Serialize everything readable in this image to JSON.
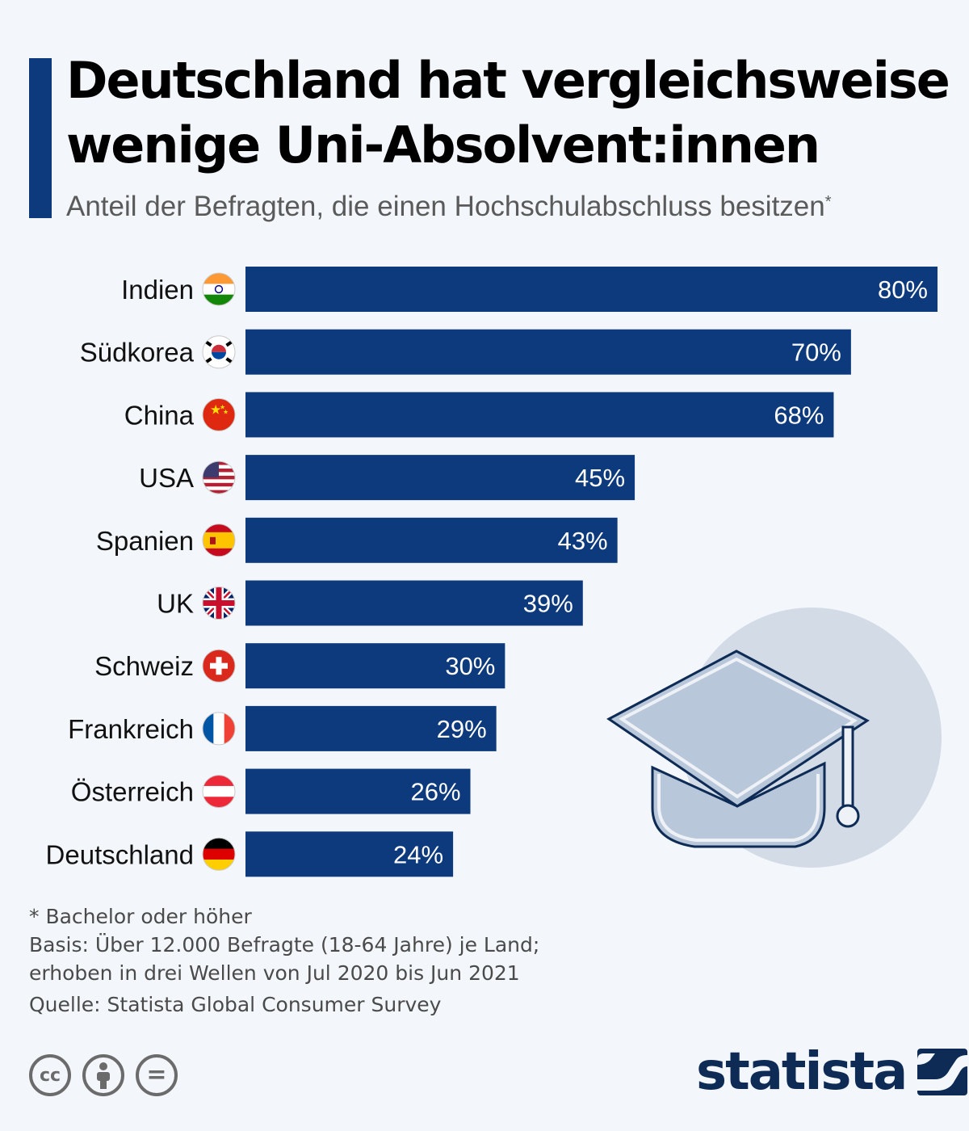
{
  "header": {
    "title_line1": "Deutschland hat vergleichsweise",
    "title_line2": "wenige Uni-Absolvent:innen",
    "subtitle": "Anteil der Befragten, die einen Hochschulabschluss besitzen",
    "subtitle_marker": "*"
  },
  "chart_data": {
    "type": "bar",
    "orientation": "horizontal",
    "categories": [
      "Indien",
      "Südkorea",
      "China",
      "USA",
      "Spanien",
      "UK",
      "Schweiz",
      "Frankreich",
      "Österreich",
      "Deutschland"
    ],
    "values": [
      80,
      70,
      68,
      45,
      43,
      39,
      30,
      29,
      26,
      24
    ],
    "value_labels": [
      "80%",
      "70%",
      "68%",
      "45%",
      "43%",
      "39%",
      "30%",
      "29%",
      "26%",
      "24%"
    ],
    "xlim": [
      0,
      80
    ],
    "grid": false,
    "bar_color": "#0d3a7d",
    "flag_icons": [
      "flag-india-icon",
      "flag-south-korea-icon",
      "flag-china-icon",
      "flag-usa-icon",
      "flag-spain-icon",
      "flag-uk-icon",
      "flag-switzerland-icon",
      "flag-france-icon",
      "flag-austria-icon",
      "flag-germany-icon"
    ]
  },
  "notes": {
    "footnote": "* Bachelor oder höher",
    "basis_line1": "Basis: Über 12.000 Befragte (18-64 Jahre) je Land;",
    "basis_line2": "erhoben in drei Wellen von Jul 2020 bis Jun 2021",
    "source": "Quelle: Statista Global Consumer Survey"
  },
  "footer": {
    "cc_icons": [
      "cc-icon",
      "by-attribution-icon",
      "no-derivatives-icon"
    ],
    "cc_text": "cc",
    "nd_text": "=",
    "brand": "statista"
  },
  "colors": {
    "accent": "#0d3a7d",
    "background": "#f3f6fa",
    "brand": "#0d2b55",
    "decor_circle": "#d3dbe7",
    "decor_cap": "#b9c7da"
  }
}
